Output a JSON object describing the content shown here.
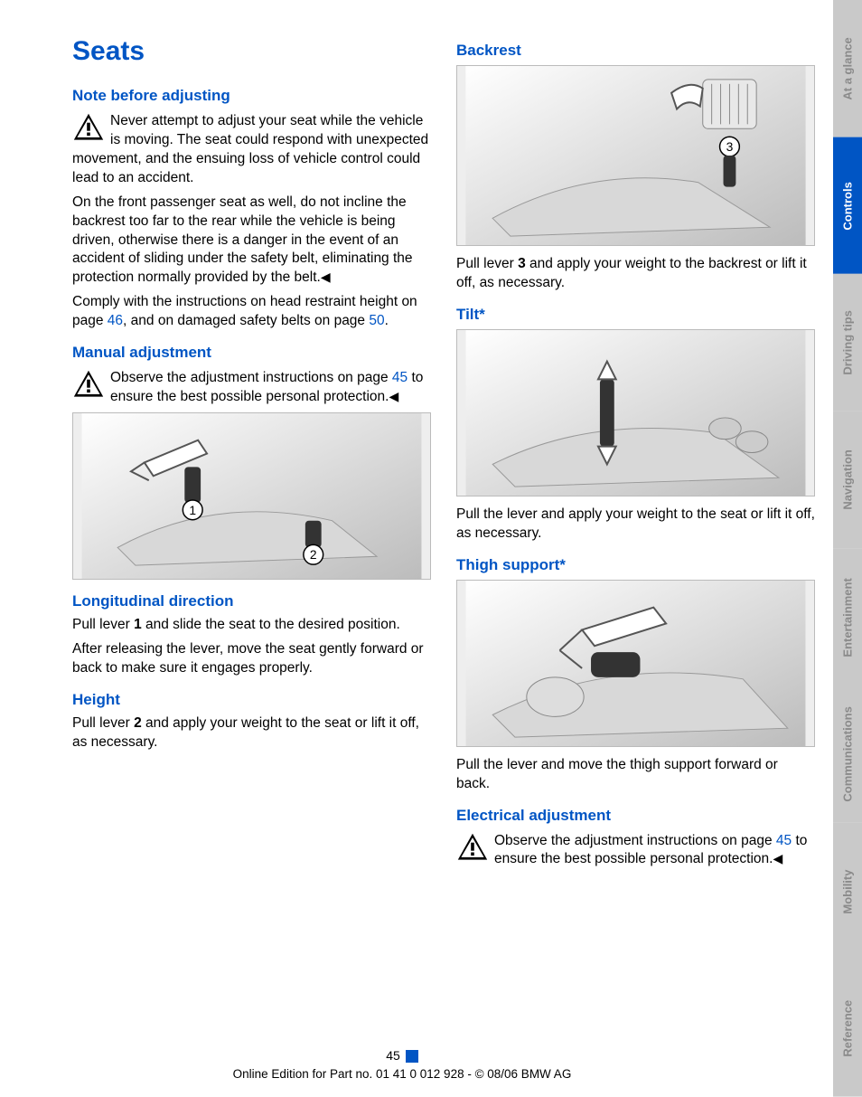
{
  "page": {
    "number": "45",
    "footer": "Online Edition for Part no. 01 41 0 012 928 - © 08/06 BMW AG"
  },
  "colors": {
    "primary": "#0055c4",
    "text": "#000000",
    "tab_inactive_bg": "#c9c9c9",
    "tab_inactive_fg": "#8a8a8a",
    "tab_active_bg": "#0055c4",
    "tab_active_fg": "#ffffff"
  },
  "sidebar": {
    "tabs": [
      {
        "label": "At a glance",
        "active": false
      },
      {
        "label": "Controls",
        "active": true
      },
      {
        "label": "Driving tips",
        "active": false
      },
      {
        "label": "Navigation",
        "active": false
      },
      {
        "label": "Entertainment",
        "active": false
      },
      {
        "label": "Communications",
        "active": false
      },
      {
        "label": "Mobility",
        "active": false
      },
      {
        "label": "Reference",
        "active": false
      }
    ]
  },
  "left": {
    "title": "Seats",
    "note_heading": "Note before adjusting",
    "note_p1_a": "Never attempt to adjust your seat while the vehicle is moving. The seat could respond with unexpected movement, and the ensuing loss of vehicle control could lead to an accident.",
    "note_p1_b": "On the front passenger seat as well, do not incline the backrest too far to the rear while the vehicle is being driven, otherwise there is a danger in the event of an accident of sliding under the safety belt, eliminating the protection normally provided by the belt.",
    "note_p2_a": "Comply with the instructions on head restraint height on page ",
    "note_p2_link1": "46",
    "note_p2_b": ", and on damaged safety belts on page ",
    "note_p2_link2": "50",
    "note_p2_c": ".",
    "manual_heading": "Manual adjustment",
    "manual_p_a": "Observe the adjustment instructions on page ",
    "manual_p_link": "45",
    "manual_p_b": " to ensure the best possible personal protection.",
    "long_heading": "Longitudinal direction",
    "long_p_a": "Pull lever ",
    "long_p_bold": "1",
    "long_p_b": " and slide the seat to the desired position.",
    "long_p2": "After releasing the lever, move the seat gently forward or back to make sure it engages properly.",
    "height_heading": "Height",
    "height_p_a": "Pull lever ",
    "height_p_bold": "2",
    "height_p_b": " and apply your weight to the seat or lift it off, as necessary."
  },
  "right": {
    "backrest_heading": "Backrest",
    "backrest_p_a": "Pull lever ",
    "backrest_p_bold": "3",
    "backrest_p_b": " and apply your weight to the backrest or lift it off, as necessary.",
    "tilt_heading": "Tilt*",
    "tilt_p": "Pull the lever and apply your weight to the seat or lift it off, as necessary.",
    "thigh_heading": "Thigh support*",
    "thigh_p": "Pull the lever and move the thigh support forward or back.",
    "electrical_heading": "Electrical adjustment",
    "electrical_p_a": "Observe the adjustment instructions on page ",
    "electrical_p_link": "45",
    "electrical_p_b": " to ensure the best possible personal protection."
  }
}
